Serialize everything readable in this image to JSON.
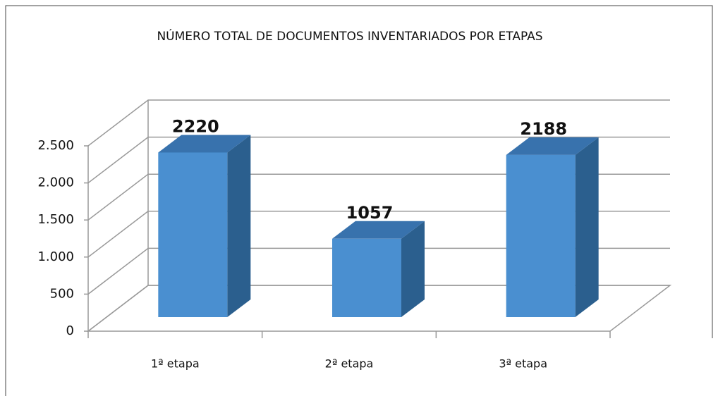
{
  "chart_data": {
    "type": "bar3d",
    "title": "NÚMERO TOTAL DE DOCUMENTOS INVENTARIADOS POR ETAPAS",
    "categories": [
      "1ª etapa",
      "2ª etapa",
      "3ª etapa"
    ],
    "values": [
      2220,
      1057,
      2188
    ],
    "color": "#4a8fd0",
    "ylim": [
      0,
      2500
    ],
    "yticks": [
      0,
      500,
      {
        "value": 1000,
        "label": "1.000"
      },
      {
        "value": 1500,
        "label": "1.500"
      },
      {
        "value": 2000,
        "label": "2.000"
      },
      {
        "value": 2500,
        "label": "2.500"
      }
    ],
    "grid": true
  }
}
